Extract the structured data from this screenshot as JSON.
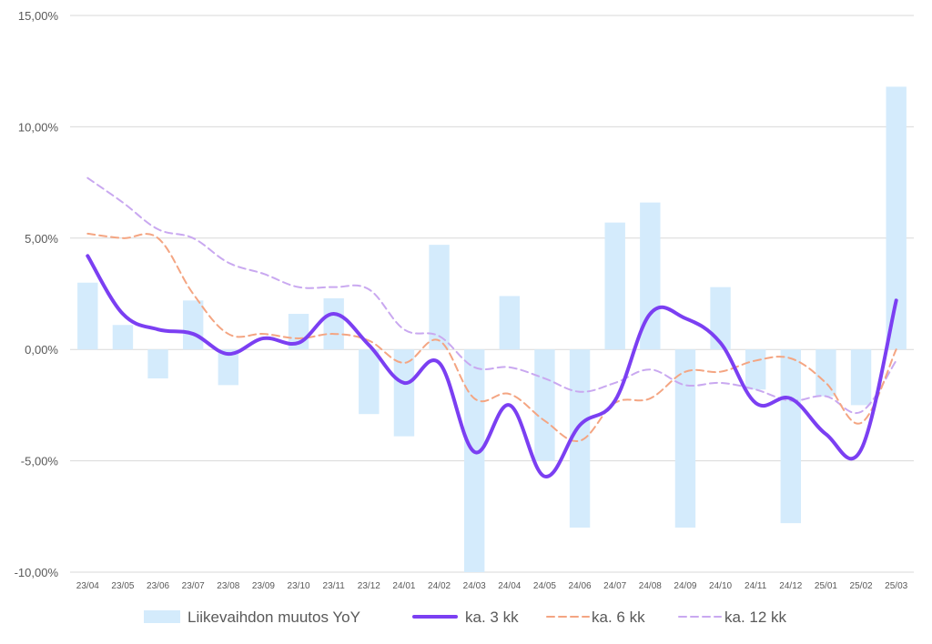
{
  "chart_data": {
    "type": "bar+line",
    "title": "",
    "xlabel": "",
    "ylabel": "",
    "ylim": [
      -10,
      15
    ],
    "y_ticks": [
      15,
      10,
      5,
      0,
      -5,
      -10
    ],
    "y_tick_labels": [
      "15,00%",
      "10,00%",
      "5,00%",
      "0,00%",
      "-5,00%",
      "-10,00%"
    ],
    "grid": "horizontal",
    "legend_position": "bottom",
    "categories": [
      "23/04",
      "23/05",
      "23/06",
      "23/07",
      "23/08",
      "23/09",
      "23/10",
      "23/11",
      "23/12",
      "24/01",
      "24/02",
      "24/03",
      "24/04",
      "24/05",
      "24/06",
      "24/07",
      "24/08",
      "24/09",
      "24/10",
      "24/11",
      "24/12",
      "25/01",
      "25/02",
      "25/03"
    ],
    "series": [
      {
        "name": "Liikevaihdon muutos YoY",
        "kind": "bar",
        "color": "#d4ebfc",
        "values": [
          3.0,
          1.1,
          -1.3,
          2.2,
          -1.6,
          0.0,
          1.6,
          2.3,
          -2.9,
          -3.9,
          4.7,
          -10.0,
          2.4,
          -5.0,
          -8.0,
          5.7,
          6.6,
          -8.0,
          2.8,
          -1.8,
          -7.8,
          -2.1,
          -2.5,
          11.8
        ]
      },
      {
        "name": "ka. 3 kk",
        "kind": "line",
        "style": "solid",
        "color": "#7b3ff2",
        "values": [
          4.2,
          1.6,
          0.9,
          0.7,
          -0.2,
          0.5,
          0.3,
          1.6,
          0.2,
          -1.5,
          -0.6,
          -4.6,
          -2.5,
          -5.7,
          -3.4,
          -2.3,
          1.6,
          1.4,
          0.3,
          -2.4,
          -2.2,
          -3.8,
          -4.5,
          2.2
        ]
      },
      {
        "name": "ka. 6 kk",
        "kind": "line",
        "style": "dashed",
        "color": "#f4a582",
        "values": [
          5.2,
          5.0,
          5.0,
          2.5,
          0.7,
          0.7,
          0.5,
          0.7,
          0.4,
          -0.6,
          0.4,
          -2.2,
          -2.0,
          -3.2,
          -4.1,
          -2.4,
          -2.2,
          -1.0,
          -1.0,
          -0.5,
          -0.4,
          -1.5,
          -3.3,
          0.0
        ]
      },
      {
        "name": "ka. 12 kk",
        "kind": "line",
        "style": "dashed",
        "color": "#c9a8f0",
        "values": [
          7.7,
          6.6,
          5.4,
          5.0,
          3.9,
          3.4,
          2.8,
          2.8,
          2.7,
          0.9,
          0.6,
          -0.8,
          -0.8,
          -1.3,
          -1.9,
          -1.5,
          -0.9,
          -1.6,
          -1.5,
          -1.8,
          -2.3,
          -2.1,
          -2.8,
          -0.5
        ]
      }
    ]
  }
}
